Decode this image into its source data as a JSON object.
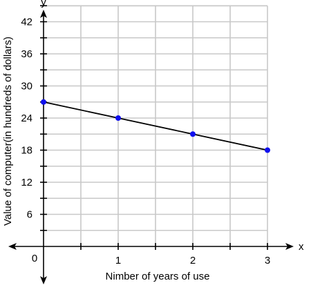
{
  "chart_data": {
    "type": "line",
    "title": "",
    "xlabel": "Nimber of years of use",
    "ylabel": "Value of computer(in hundreds of dollars)",
    "x_axis_letter": "x",
    "y_axis_letter": "y",
    "origin_label": "0",
    "xlim": [
      0,
      3.0
    ],
    "ylim": [
      0,
      42
    ],
    "x_grid_step": 0.5,
    "y_grid_step": 3,
    "x_tick_labels": [
      "1",
      "2",
      "3"
    ],
    "x_tick_values": [
      1,
      2,
      3
    ],
    "y_tick_labels": [
      "6",
      "12",
      "18",
      "24",
      "30",
      "36",
      "42"
    ],
    "y_tick_values": [
      6,
      12,
      18,
      24,
      30,
      36,
      42
    ],
    "grid": true,
    "legend": false,
    "series": [
      {
        "x": [
          0,
          1,
          2,
          3
        ],
        "y": [
          27,
          24,
          21,
          18
        ]
      }
    ],
    "colors": {
      "grid": "#c8c8c8",
      "axis": "#000000",
      "line": "#000000",
      "point": "#1010ee"
    }
  }
}
